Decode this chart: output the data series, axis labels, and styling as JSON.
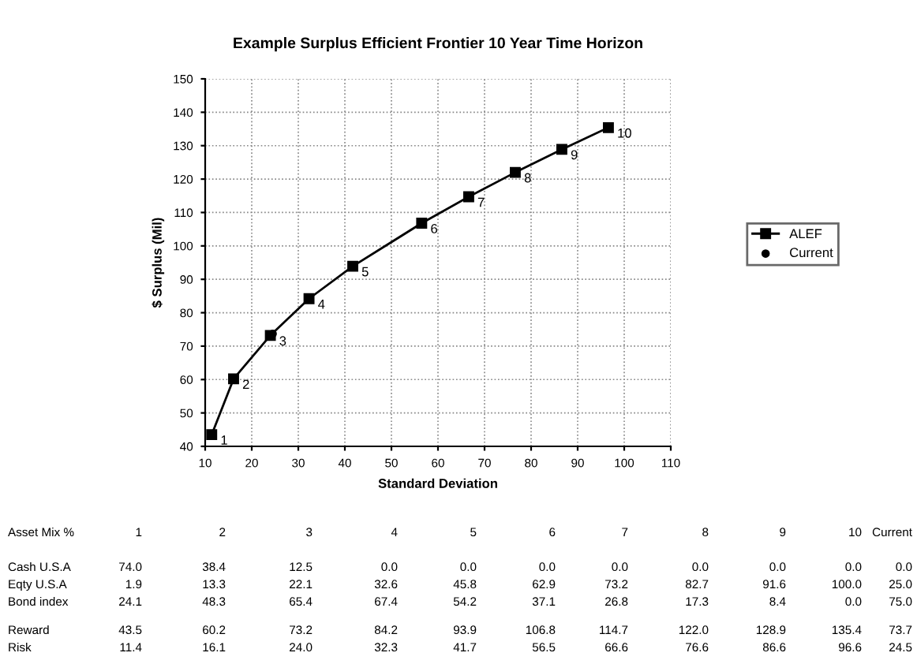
{
  "chart_data": {
    "type": "line",
    "title": "Example Surplus Efficient Frontier 10 Year Time Horizon",
    "xlabel": "Standard Deviation",
    "ylabel": "$ Surplus (Mil)",
    "xlim": [
      10,
      110
    ],
    "xticks": [
      10,
      20,
      30,
      40,
      50,
      60,
      70,
      80,
      90,
      100,
      110
    ],
    "ylim": [
      40,
      150
    ],
    "yticks": [
      40,
      50,
      60,
      70,
      80,
      90,
      100,
      110,
      120,
      130,
      140,
      150
    ],
    "grid": true,
    "legend": "right",
    "series": [
      {
        "name": "ALEF",
        "marker": "square",
        "color": "#000000",
        "x": [
          11.4,
          16.1,
          24.0,
          32.3,
          41.7,
          56.5,
          66.6,
          76.6,
          86.6,
          96.6
        ],
        "values": [
          43.5,
          60.2,
          73.2,
          84.2,
          93.9,
          106.8,
          114.7,
          122.0,
          128.9,
          135.4
        ]
      },
      {
        "name": "Current",
        "type": "scatter",
        "marker": "circle",
        "color": "#000000",
        "x": [
          24.5
        ],
        "values": [
          73.7
        ]
      }
    ],
    "annotations": [
      {
        "text": "1",
        "x": 11.4,
        "y": 43.5
      },
      {
        "text": "2",
        "x": 16.1,
        "y": 60.2
      },
      {
        "text": "3",
        "x": 24.0,
        "y": 73.2
      },
      {
        "text": "4",
        "x": 32.3,
        "y": 84.2
      },
      {
        "text": "5",
        "x": 41.7,
        "y": 93.9
      },
      {
        "text": "6",
        "x": 56.5,
        "y": 106.8
      },
      {
        "text": "7",
        "x": 66.6,
        "y": 114.7
      },
      {
        "text": "8",
        "x": 76.6,
        "y": 122.0
      },
      {
        "text": "9",
        "x": 86.6,
        "y": 128.9
      },
      {
        "text": "10",
        "x": 96.6,
        "y": 135.4
      },
      "Asset Mix %",
      "1",
      "2",
      "3",
      "4",
      "5",
      "6",
      "7",
      "8",
      "9",
      "10",
      "Current",
      "Cash U.S.A",
      "74.0",
      "38.4",
      "12.5",
      "0.0",
      "0.0",
      "0.0",
      "0.0",
      "0.0",
      "0.0",
      "0.0",
      "0.0",
      "Eqty U.S.A",
      "1.9",
      "13.3",
      "22.1",
      "32.6",
      "45.8",
      "62.9",
      "73.2",
      "82.7",
      "91.6",
      "100.0",
      "25.0",
      "Bond index",
      "24.1",
      "48.3",
      "65.4",
      "67.4",
      "54.2",
      "37.1",
      "26.8",
      "17.3",
      "8.4",
      "0.0",
      "75.0",
      "Reward",
      "43.5",
      "60.2",
      "73.2",
      "84.2",
      "93.9",
      "106.8",
      "114.7",
      "122.0",
      "128.9",
      "135.4",
      "73.7",
      "Risk",
      "11.4",
      "16.1",
      "24.0",
      "32.3",
      "41.7",
      "56.5",
      "66.6",
      "76.6",
      "86.6",
      "96.6",
      "24.5"
    ]
  }
}
